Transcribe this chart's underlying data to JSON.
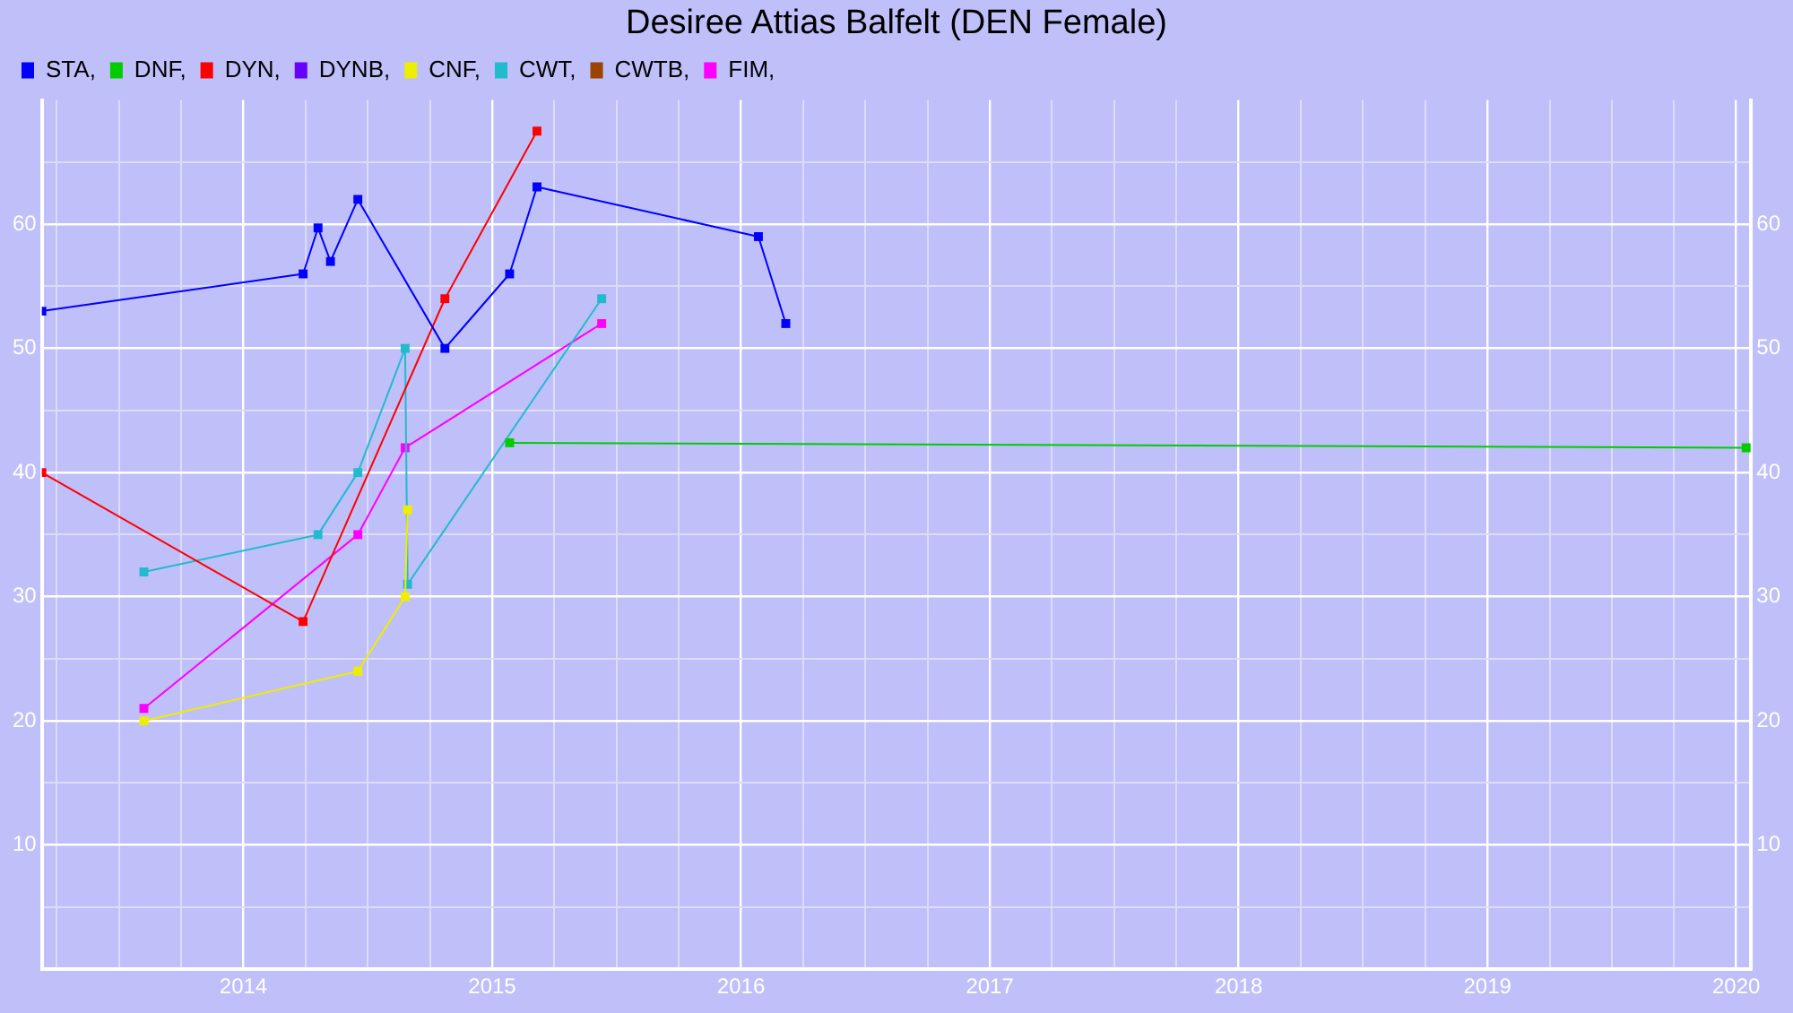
{
  "chart_data": {
    "type": "line",
    "title": "Desiree Attias Balfelt (DEN Female)",
    "legend": "top left",
    "grid": true,
    "marker": "square",
    "line_style": "solid",
    "xlim": [
      2013.19,
      2020.06
    ],
    "xticks": [
      {
        "value": 2013.25,
        "label": null
      },
      {
        "value": 2013.5,
        "label": null
      },
      {
        "value": 2013.75,
        "label": null
      },
      2014,
      {
        "value": 2014.25,
        "label": null
      },
      {
        "value": 2014.5,
        "label": null
      },
      {
        "value": 2014.75,
        "label": null
      },
      2015,
      {
        "value": 2015.25,
        "label": null
      },
      {
        "value": 2015.5,
        "label": null
      },
      {
        "value": 2015.75,
        "label": null
      },
      2016,
      {
        "value": 2016.25,
        "label": null
      },
      {
        "value": 2016.5,
        "label": null
      },
      {
        "value": 2016.75,
        "label": null
      },
      2017,
      {
        "value": 2017.25,
        "label": null
      },
      {
        "value": 2017.5,
        "label": null
      },
      {
        "value": 2017.75,
        "label": null
      },
      2018,
      {
        "value": 2018.25,
        "label": null
      },
      {
        "value": 2018.5,
        "label": null
      },
      {
        "value": 2018.75,
        "label": null
      },
      2019,
      {
        "value": 2019.25,
        "label": null
      },
      {
        "value": 2019.5,
        "label": null
      },
      {
        "value": 2019.75,
        "label": null
      },
      2020
    ],
    "ylim": [
      0,
      70
    ],
    "yticks": [
      {
        "value": 5,
        "label": null
      },
      10,
      {
        "value": 15,
        "label": null
      },
      20,
      {
        "value": 25,
        "label": null
      },
      30,
      {
        "value": 35,
        "label": null
      },
      40,
      {
        "value": 45,
        "label": null
      },
      50,
      {
        "value": 55,
        "label": null
      },
      60,
      {
        "value": 65,
        "label": null
      }
    ],
    "y2lim": [
      0,
      70
    ],
    "y2ticks": [
      10,
      20,
      30,
      40,
      50,
      60
    ],
    "series": [
      {
        "name": "STA,",
        "color": "#0000ff",
        "x": [
          2013.19,
          2014.24,
          2014.3,
          2014.35,
          2014.46,
          2014.81,
          2015.07,
          2015.18,
          2016.07,
          2016.18
        ],
        "values": [
          53,
          56,
          59.7,
          57,
          62,
          50,
          56,
          63,
          59,
          52
        ]
      },
      {
        "name": "DNF,",
        "color": "#00cc00",
        "x": [
          2015.07,
          2020.04
        ],
        "values": [
          42.4,
          42
        ]
      },
      {
        "name": "DYN,",
        "color": "#ff0000",
        "x": [
          2013.19,
          2014.24,
          2014.81,
          2015.18
        ],
        "values": [
          40,
          28,
          54,
          67.5
        ]
      },
      {
        "name": "DYNB,",
        "color": "#6600ff"
      },
      {
        "name": "CNF,",
        "color": "#eeee00",
        "x": [
          2013.6,
          2014.46,
          2014.65,
          2014.66
        ],
        "values": [
          20,
          24,
          30,
          37
        ]
      },
      {
        "name": "CWT,",
        "color": "#22bbcc",
        "x": [
          2013.6,
          2014.3,
          2014.46,
          2014.65,
          2014.66,
          2015.44
        ],
        "values": [
          32,
          35,
          40,
          50,
          31,
          54
        ]
      },
      {
        "name": "CWTB,",
        "color": "#994400"
      },
      {
        "name": "FIM,",
        "color": "#ff00ff",
        "x": [
          2013.6,
          2014.46,
          2014.65,
          2015.44
        ],
        "values": [
          21,
          35,
          42,
          52
        ]
      }
    ]
  }
}
